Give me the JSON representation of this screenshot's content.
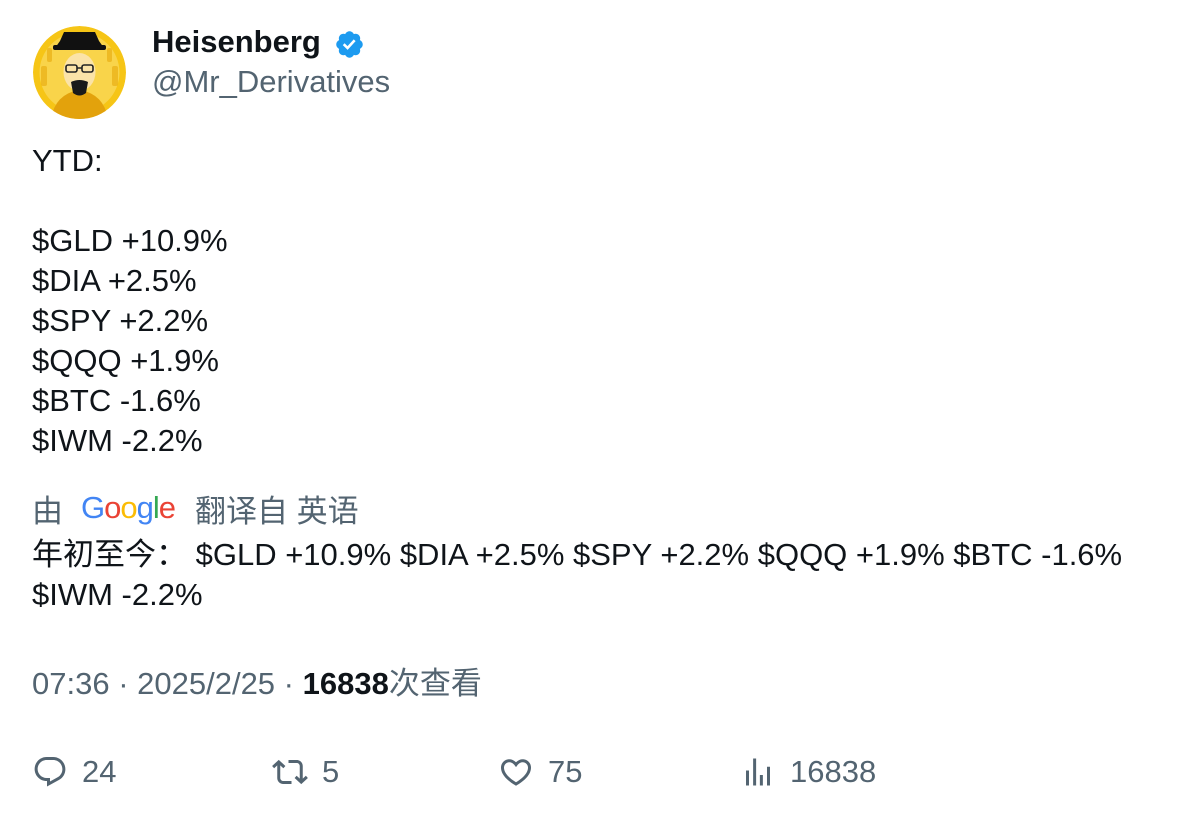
{
  "author": {
    "display_name": "Heisenberg",
    "handle": "@Mr_Derivatives",
    "verified_color": "#1d9bf0",
    "avatar_bg": "#f6c516"
  },
  "tweet": {
    "lines": [
      "YTD:",
      "",
      "$GLD +10.9%",
      "$DIA +2.5%",
      "$SPY +2.2%",
      "$QQQ +1.9%",
      "$BTC -1.6%",
      "$IWM -2.2%"
    ]
  },
  "translation": {
    "by_label": "由",
    "provider": "Google",
    "from_label": "翻译自 英语",
    "text": "年初至今： $GLD +10.9% $DIA +2.5% $SPY +2.2% $QQQ +1.9% $BTC -1.6% $IWM -2.2%"
  },
  "meta": {
    "time": "07:36",
    "date": "2025/2/25",
    "separator": " · ",
    "views_count": "16838",
    "views_label": "次查看"
  },
  "actions": {
    "replies": "24",
    "retweets": "5",
    "likes": "75",
    "views": "16838"
  }
}
